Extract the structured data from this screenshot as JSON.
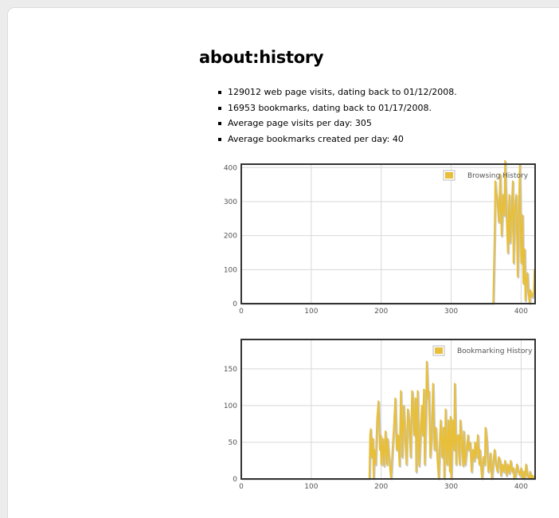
{
  "page": {
    "title": "about:history"
  },
  "stats": [
    "129012 web page visits, dating back to 01/12/2008.",
    "16953 bookmarks, dating back to 01/17/2008.",
    "Average page visits per day: 305",
    "Average bookmarks created per day: 40"
  ],
  "colors": {
    "series": "#e8bf3a",
    "shadow": "#c8c8c8",
    "grid": "#d8d8d8",
    "frame": "#333333"
  },
  "chart_data": [
    {
      "type": "line",
      "series": [
        {
          "name": "Browsing History",
          "points": [
            [
              0,
              0
            ],
            [
              360,
              0
            ],
            [
              362,
              200
            ],
            [
              363,
              360
            ],
            [
              364,
              330
            ],
            [
              366,
              300
            ],
            [
              368,
              240
            ],
            [
              370,
              380
            ],
            [
              372,
              200
            ],
            [
              374,
              320
            ],
            [
              376,
              260
            ],
            [
              377,
              420
            ],
            [
              379,
              260
            ],
            [
              381,
              150
            ],
            [
              383,
              320
            ],
            [
              384,
              180
            ],
            [
              386,
              260
            ],
            [
              388,
              360
            ],
            [
              389,
              120
            ],
            [
              391,
              280
            ],
            [
              393,
              320
            ],
            [
              395,
              80
            ],
            [
              397,
              300
            ],
            [
              398,
              410
            ],
            [
              400,
              120
            ],
            [
              402,
              260
            ],
            [
              403,
              60
            ],
            [
              405,
              160
            ],
            [
              406,
              10
            ],
            [
              407,
              60
            ],
            [
              409,
              90
            ],
            [
              410,
              40
            ],
            [
              412,
              0
            ],
            [
              413,
              40
            ],
            [
              414,
              25
            ],
            [
              416,
              20
            ],
            [
              417,
              30
            ],
            [
              418,
              30
            ],
            [
              419,
              100
            ],
            [
              420,
              100
            ]
          ]
        }
      ],
      "x_ticks": [
        0,
        100,
        200,
        300,
        400
      ],
      "y_ticks": [
        0,
        100,
        200,
        300,
        400
      ],
      "xlim": [
        0,
        420
      ],
      "ylim": [
        0,
        410
      ],
      "grid": true,
      "legend_position": "top-right"
    },
    {
      "type": "line",
      "series": [
        {
          "name": "Bookmarking History",
          "points": [
            [
              0,
              0
            ],
            [
              183,
              0
            ],
            [
              184,
              60
            ],
            [
              185,
              68
            ],
            [
              186,
              30
            ],
            [
              188,
              55
            ],
            [
              189,
              0
            ],
            [
              190,
              40
            ],
            [
              192,
              20
            ],
            [
              194,
              80
            ],
            [
              196,
              106
            ],
            [
              198,
              40
            ],
            [
              199,
              60
            ],
            [
              200,
              20
            ],
            [
              202,
              55
            ],
            [
              204,
              18
            ],
            [
              206,
              65
            ],
            [
              208,
              20
            ],
            [
              209,
              55
            ],
            [
              211,
              30
            ],
            [
              213,
              10
            ],
            [
              214,
              0
            ],
            [
              216,
              40
            ],
            [
              218,
              70
            ],
            [
              220,
              110
            ],
            [
              222,
              40
            ],
            [
              224,
              60
            ],
            [
              226,
              18
            ],
            [
              228,
              120
            ],
            [
              230,
              30
            ],
            [
              232,
              100
            ],
            [
              234,
              60
            ],
            [
              236,
              20
            ],
            [
              238,
              95
            ],
            [
              240,
              75
            ],
            [
              242,
              30
            ],
            [
              244,
              120
            ],
            [
              245,
              110
            ],
            [
              247,
              60
            ],
            [
              249,
              110
            ],
            [
              250,
              10
            ],
            [
              252,
              120
            ],
            [
              254,
              18
            ],
            [
              256,
              60
            ],
            [
              258,
              100
            ],
            [
              259,
              60
            ],
            [
              261,
              122
            ],
            [
              262,
              20
            ],
            [
              264,
              90
            ],
            [
              265,
              160
            ],
            [
              267,
              110
            ],
            [
              268,
              120
            ],
            [
              270,
              30
            ],
            [
              272,
              60
            ],
            [
              274,
              130
            ],
            [
              276,
              40
            ],
            [
              278,
              70
            ],
            [
              280,
              30
            ],
            [
              282,
              0
            ],
            [
              284,
              60
            ],
            [
              285,
              80
            ],
            [
              287,
              30
            ],
            [
              289,
              70
            ],
            [
              290,
              0
            ],
            [
              292,
              95
            ],
            [
              294,
              20
            ],
            [
              296,
              80
            ],
            [
              298,
              10
            ],
            [
              299,
              85
            ],
            [
              300,
              0
            ],
            [
              302,
              80
            ],
            [
              304,
              40
            ],
            [
              305,
              130
            ],
            [
              307,
              20
            ],
            [
              308,
              55
            ],
            [
              310,
              60
            ],
            [
              312,
              20
            ],
            [
              313,
              80
            ],
            [
              315,
              50
            ],
            [
              317,
              18
            ],
            [
              318,
              65
            ],
            [
              320,
              20
            ],
            [
              322,
              40
            ],
            [
              324,
              60
            ],
            [
              325,
              40
            ],
            [
              327,
              50
            ],
            [
              329,
              10
            ],
            [
              331,
              40
            ],
            [
              333,
              25
            ],
            [
              334,
              50
            ],
            [
              336,
              30
            ],
            [
              338,
              60
            ],
            [
              340,
              20
            ],
            [
              341,
              40
            ],
            [
              343,
              10
            ],
            [
              344,
              0
            ],
            [
              346,
              30
            ],
            [
              348,
              20
            ],
            [
              349,
              70
            ],
            [
              351,
              50
            ],
            [
              353,
              10
            ],
            [
              355,
              20
            ],
            [
              356,
              35
            ],
            [
              358,
              0
            ],
            [
              360,
              20
            ],
            [
              362,
              40
            ],
            [
              364,
              20
            ],
            [
              366,
              10
            ],
            [
              368,
              30
            ],
            [
              370,
              25
            ],
            [
              371,
              5
            ],
            [
              373,
              20
            ],
            [
              375,
              10
            ],
            [
              377,
              25
            ],
            [
              379,
              5
            ],
            [
              381,
              20
            ],
            [
              383,
              8
            ],
            [
              385,
              25
            ],
            [
              387,
              10
            ],
            [
              389,
              15
            ],
            [
              390,
              0
            ],
            [
              392,
              5
            ],
            [
              394,
              20
            ],
            [
              396,
              10
            ],
            [
              398,
              5
            ],
            [
              400,
              15
            ],
            [
              402,
              0
            ],
            [
              404,
              10
            ],
            [
              405,
              0
            ],
            [
              407,
              20
            ],
            [
              409,
              5
            ],
            [
              411,
              0
            ],
            [
              413,
              10
            ],
            [
              414,
              0
            ],
            [
              416,
              5
            ],
            [
              418,
              0
            ],
            [
              420,
              5
            ]
          ]
        }
      ],
      "x_ticks": [
        0,
        100,
        200,
        300,
        400
      ],
      "y_ticks": [
        0,
        50,
        100,
        150
      ],
      "xlim": [
        0,
        420
      ],
      "ylim": [
        0,
        190
      ],
      "grid": true,
      "legend_position": "top-right"
    }
  ]
}
